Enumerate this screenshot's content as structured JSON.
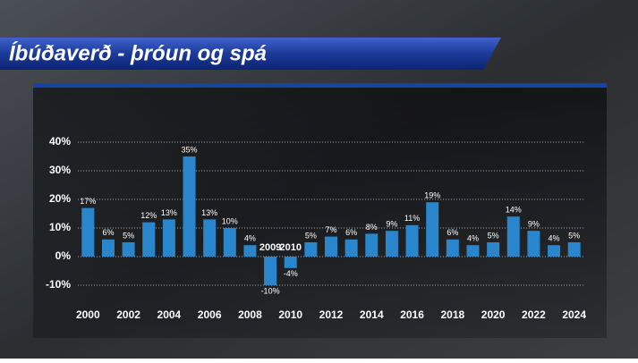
{
  "chart_data": {
    "type": "bar",
    "title": "Íbúðaverð - þróun og spá",
    "categories": [
      "2000",
      null,
      "2002",
      null,
      "2004",
      null,
      "2006",
      null,
      "2008",
      null,
      "2010",
      null,
      "2012",
      null,
      "2014",
      null,
      "2016",
      null,
      "2018",
      null,
      "2020",
      null,
      "2022",
      null,
      "2024"
    ],
    "values": [
      17,
      6,
      5,
      12,
      13,
      35,
      13,
      10,
      4,
      -10,
      -4,
      5,
      7,
      6,
      8,
      9,
      11,
      19,
      6,
      4,
      5,
      14,
      9,
      4,
      5
    ],
    "value_labels": [
      "17%",
      "6%",
      "5%",
      "12%",
      "13%",
      "35%",
      "13%",
      "10%",
      "4%",
      "-10%",
      "-4%",
      "5%",
      "7%",
      "6%",
      "8%",
      "9%",
      "11%",
      "19%",
      "6%",
      "4%",
      "5%",
      "14%",
      "9%",
      "4%",
      "5%"
    ],
    "annotations": [
      {
        "label": "2009",
        "index": 9
      },
      {
        "label": "2010",
        "index": 10
      }
    ],
    "color": "#2a86cc",
    "ylim": [
      -14,
      41
    ],
    "yticks": [
      {
        "value": -10,
        "label": "-10%"
      },
      {
        "value": 0,
        "label": "0%"
      },
      {
        "value": 10,
        "label": "10%"
      },
      {
        "value": 20,
        "label": "20%"
      },
      {
        "value": 30,
        "label": "30%"
      },
      {
        "value": 40,
        "label": "40%"
      }
    ],
    "grid": true
  }
}
